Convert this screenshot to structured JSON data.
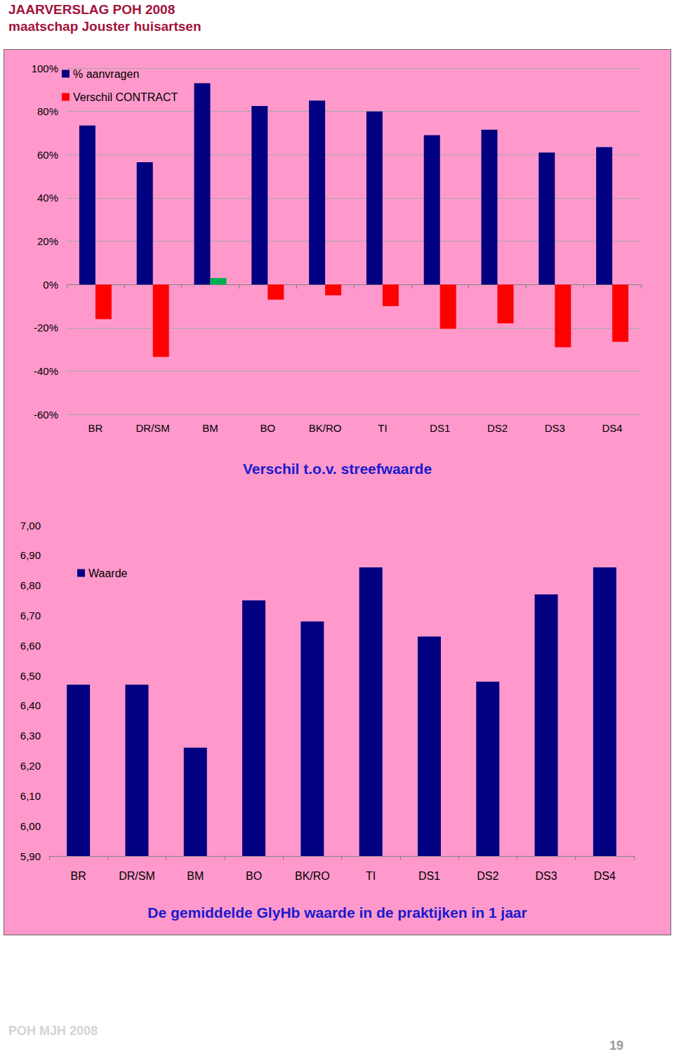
{
  "header": {
    "title": "JAARVERSLAG POH 2008",
    "subtitle": "maatschap Jouster huisartsen"
  },
  "footer": {
    "left": "POH MJH 2008",
    "page": "19"
  },
  "chart_data": [
    {
      "type": "bar",
      "title": "Verschil t.o.v. streefwaarde",
      "categories": [
        "BR",
        "DR/SM",
        "BM",
        "BO",
        "BK/RO",
        "TI",
        "DS1",
        "DS2",
        "DS3",
        "DS4"
      ],
      "series": [
        {
          "name": "% aanvragen",
          "color": "#000080",
          "values": [
            73.5,
            56.5,
            93,
            82.5,
            85,
            80,
            69,
            71.5,
            61,
            63.5
          ]
        },
        {
          "name": "Verschil CONTRACT",
          "color": "#ff0000",
          "colors": [
            "#ff0000",
            "#ff0000",
            "#00b050",
            "#ff0000",
            "#ff0000",
            "#ff0000",
            "#ff0000",
            "#ff0000",
            "#ff0000",
            "#ff0000"
          ],
          "values": [
            -16,
            -33.5,
            3,
            -7,
            -5,
            -10,
            -20.5,
            -18,
            -29,
            -26.5
          ]
        }
      ],
      "ylim": [
        -60,
        100
      ],
      "yticks": [
        {
          "value": -60,
          "label": "-60%"
        },
        {
          "value": -40,
          "label": "-40%"
        },
        {
          "value": -20,
          "label": "-20%"
        },
        {
          "value": 0,
          "label": "0%"
        },
        {
          "value": 20,
          "label": "20%"
        },
        {
          "value": 40,
          "label": "40%"
        },
        {
          "value": 60,
          "label": "60%"
        },
        {
          "value": 80,
          "label": "80%"
        },
        {
          "value": 100,
          "label": "100%"
        }
      ],
      "grid": true,
      "legend": "top-left"
    },
    {
      "type": "bar",
      "title": "De gemiddelde GlyHb waarde in de praktijken in 1 jaar",
      "categories": [
        "BR",
        "DR/SM",
        "BM",
        "BO",
        "BK/RO",
        "TI",
        "DS1",
        "DS2",
        "DS3",
        "DS4"
      ],
      "series": [
        {
          "name": "Waarde",
          "color": "#000080",
          "values": [
            6.47,
            6.47,
            6.26,
            6.75,
            6.68,
            6.86,
            6.63,
            6.48,
            6.77,
            6.86
          ]
        }
      ],
      "ylim": [
        5.9,
        7.0
      ],
      "yticks": [
        {
          "value": 5.9,
          "label": "5,90"
        },
        {
          "value": 6.0,
          "label": "6,00"
        },
        {
          "value": 6.1,
          "label": "6,10"
        },
        {
          "value": 6.2,
          "label": "6,20"
        },
        {
          "value": 6.3,
          "label": "6,30"
        },
        {
          "value": 6.4,
          "label": "6,40"
        },
        {
          "value": 6.5,
          "label": "6,50"
        },
        {
          "value": 6.6,
          "label": "6,60"
        },
        {
          "value": 6.7,
          "label": "6,70"
        },
        {
          "value": 6.8,
          "label": "6,80"
        },
        {
          "value": 6.9,
          "label": "6,90"
        },
        {
          "value": 7.0,
          "label": "7,00"
        }
      ],
      "grid": false,
      "legend": "top-left"
    }
  ]
}
